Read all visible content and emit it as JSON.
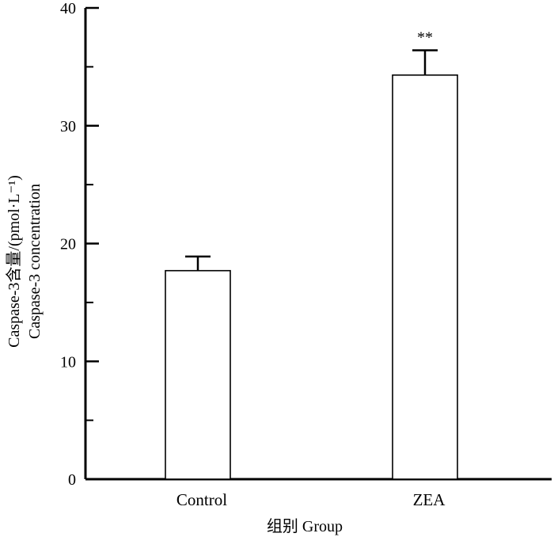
{
  "chart_data": {
    "type": "bar",
    "categories": [
      "Control",
      "ZEA"
    ],
    "values": [
      17.7,
      34.3
    ],
    "errors": [
      1.2,
      2.1
    ],
    "annotations": [
      "",
      "**"
    ],
    "xlabel": "组别  Group",
    "ylabel": {
      "line1": "Caspase-3含量/(pmol·L⁻¹)",
      "line2": "Caspase-3 concentration"
    },
    "ylim": [
      0,
      40
    ],
    "yticks": [
      0,
      10,
      20,
      30,
      40
    ],
    "minor_ticks": [
      5,
      15,
      25,
      35
    ],
    "grid": false,
    "bar_fill": "#ffffff",
    "bar_stroke": "#000000"
  }
}
